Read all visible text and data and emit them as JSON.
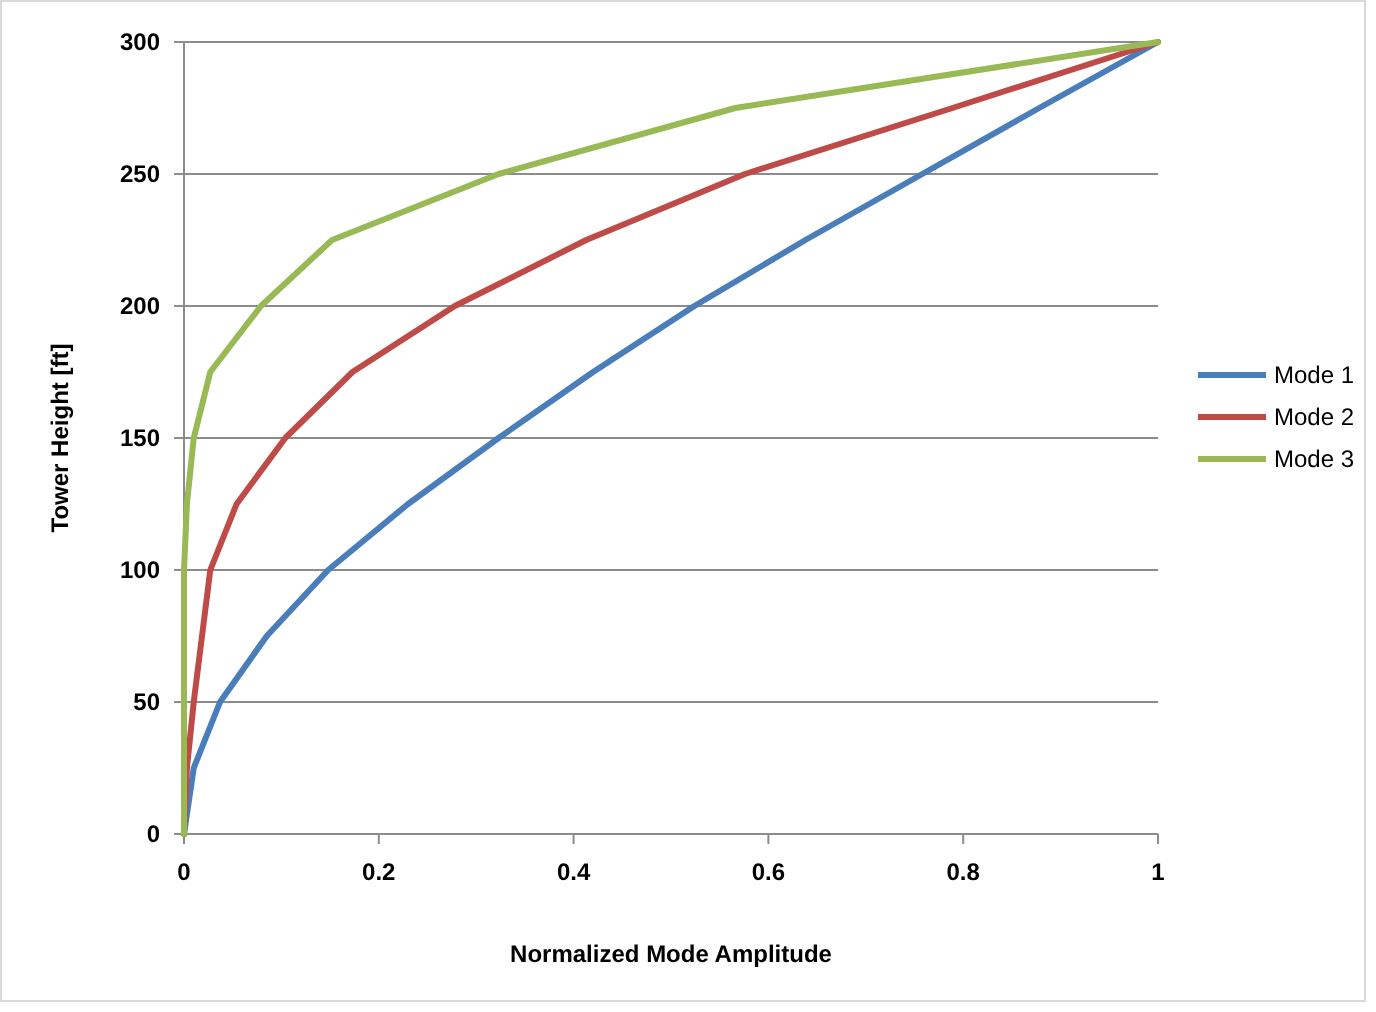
{
  "chart_data": {
    "type": "line",
    "xlabel": "Normalized Mode Amplitude",
    "ylabel": "Tower Height [ft]",
    "xlim": [
      0,
      1
    ],
    "xticks": [
      0,
      0.2,
      0.4,
      0.6,
      0.8,
      1
    ],
    "ylim": [
      0,
      300
    ],
    "yticks": [
      0,
      50,
      100,
      150,
      200,
      250,
      300
    ],
    "grid": "y",
    "legend": "right",
    "series": [
      {
        "name": "Mode 1",
        "color": "#4a7ebb",
        "x": [
          0,
          0.01,
          0.037,
          0.085,
          0.148,
          0.23,
          0.323,
          0.42,
          0.524,
          0.638,
          0.758,
          0.878,
          1
        ],
        "values": [
          0,
          25,
          50,
          75,
          100,
          125,
          150,
          175,
          200,
          225,
          250,
          275,
          300
        ]
      },
      {
        "name": "Mode 2",
        "color": "#be4b48",
        "x": [
          0,
          0.003,
          0.01,
          0.027,
          0.054,
          0.104,
          0.173,
          0.278,
          0.413,
          0.576,
          0.789,
          1
        ],
        "values": [
          0,
          25,
          50,
          100,
          125,
          150,
          175,
          200,
          225,
          250,
          275,
          300
        ]
      },
      {
        "name": "Mode 3",
        "color": "#98b954",
        "x": [
          0,
          0,
          0.003,
          0.01,
          0.027,
          0.079,
          0.152,
          0.323,
          0.566,
          1
        ],
        "values": [
          0,
          100,
          125,
          150,
          175,
          200,
          225,
          250,
          275,
          300
        ]
      }
    ]
  }
}
